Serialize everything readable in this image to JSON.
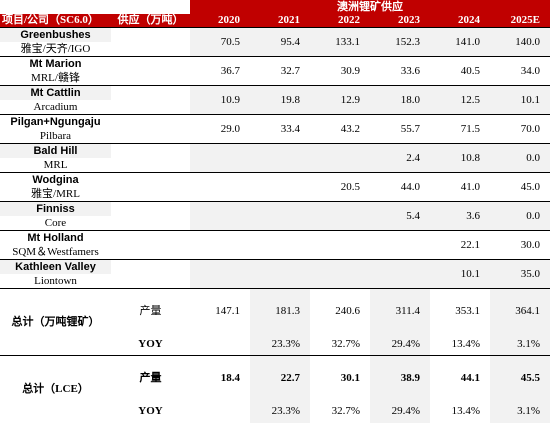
{
  "header": {
    "label": "项目/公司（SC6.0）",
    "col2": "供应（万吨）",
    "title": "澳洲锂矿供应",
    "years": [
      "2020",
      "2021",
      "2022",
      "2023",
      "2024",
      "2025E"
    ]
  },
  "projects": [
    {
      "name": "Greenbushes",
      "owner": "雅宝/天齐/IGO",
      "values": [
        "70.5",
        "95.4",
        "133.1",
        "152.3",
        "141.0",
        "140.0"
      ]
    },
    {
      "name": "Mt Marion",
      "owner": "MRL/赣锋",
      "values": [
        "36.7",
        "32.7",
        "30.9",
        "33.6",
        "40.5",
        "34.0"
      ]
    },
    {
      "name": "Mt Cattlin",
      "owner": "Arcadium",
      "values": [
        "10.9",
        "19.8",
        "12.9",
        "18.0",
        "12.5",
        "10.1"
      ]
    },
    {
      "name": "Pilgan+Ngungaju",
      "owner": "Pilbara",
      "values": [
        "29.0",
        "33.4",
        "43.2",
        "55.7",
        "71.5",
        "70.0"
      ]
    },
    {
      "name": "Bald Hill",
      "owner": "MRL",
      "values": [
        "",
        "",
        "",
        "2.4",
        "10.8",
        "0.0"
      ]
    },
    {
      "name": "Wodgina",
      "owner": "雅宝/MRL",
      "values": [
        "",
        "",
        "20.5",
        "44.0",
        "41.0",
        "45.0"
      ]
    },
    {
      "name": "Finniss",
      "owner": "Core",
      "values": [
        "",
        "",
        "",
        "5.4",
        "3.6",
        "0.0"
      ]
    },
    {
      "name": "Mt Holland",
      "owner": "SQM＆Westfamers",
      "values": [
        "",
        "",
        "",
        "",
        "22.1",
        "30.0"
      ]
    },
    {
      "name": "Kathleen Valley",
      "owner": "Liontown",
      "values": [
        "",
        "",
        "",
        "",
        "10.1",
        "35.0"
      ]
    }
  ],
  "totals": [
    {
      "label": "总计（万吨锂矿）",
      "rows": [
        {
          "label": "产量",
          "values": [
            "147.1",
            "181.3",
            "240.6",
            "311.4",
            "353.1",
            "364.1"
          ]
        },
        {
          "label": "YOY",
          "values": [
            "",
            "23.3%",
            "32.7%",
            "29.4%",
            "13.4%",
            "3.1%"
          ]
        }
      ]
    },
    {
      "label": "总计（LCE）",
      "rows": [
        {
          "label": "产量",
          "values": [
            "18.4",
            "22.7",
            "30.1",
            "38.9",
            "44.1",
            "45.5"
          ]
        },
        {
          "label": "YOY",
          "values": [
            "",
            "23.3%",
            "32.7%",
            "29.4%",
            "13.4%",
            "3.1%"
          ]
        }
      ]
    }
  ],
  "colors": {
    "header_bg": "#c00000",
    "header_text": "#ffffff",
    "shade": "#f2f2f2"
  }
}
